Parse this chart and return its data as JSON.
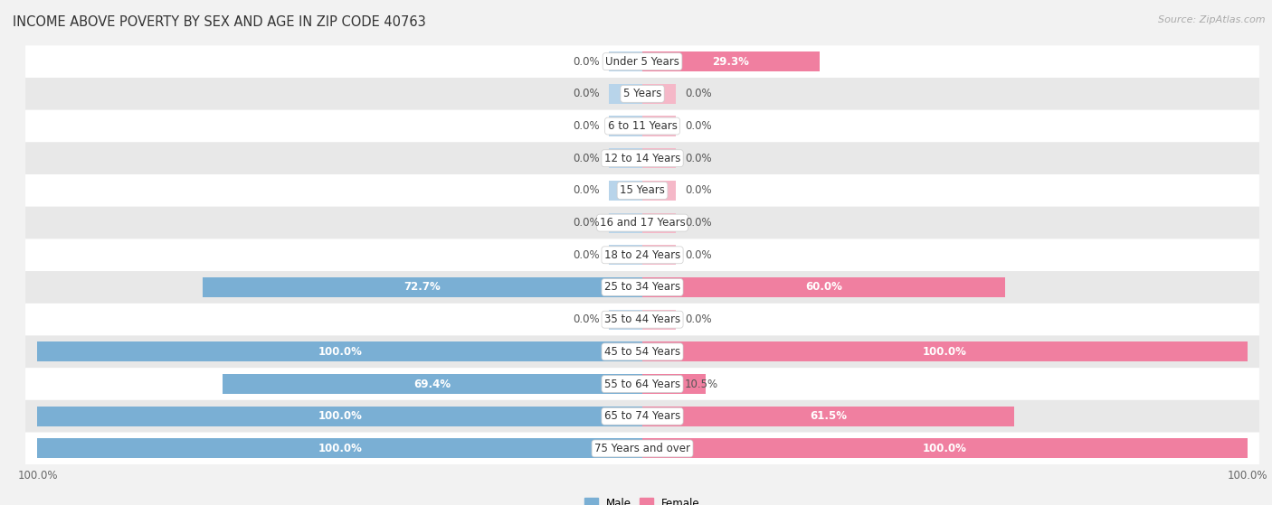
{
  "title": "INCOME ABOVE POVERTY BY SEX AND AGE IN ZIP CODE 40763",
  "source": "Source: ZipAtlas.com",
  "categories": [
    "Under 5 Years",
    "5 Years",
    "6 to 11 Years",
    "12 to 14 Years",
    "15 Years",
    "16 and 17 Years",
    "18 to 24 Years",
    "25 to 34 Years",
    "35 to 44 Years",
    "45 to 54 Years",
    "55 to 64 Years",
    "65 to 74 Years",
    "75 Years and over"
  ],
  "male": [
    0.0,
    0.0,
    0.0,
    0.0,
    0.0,
    0.0,
    0.0,
    72.7,
    0.0,
    100.0,
    69.4,
    100.0,
    100.0
  ],
  "female": [
    29.3,
    0.0,
    0.0,
    0.0,
    0.0,
    0.0,
    0.0,
    60.0,
    0.0,
    100.0,
    10.5,
    61.5,
    100.0
  ],
  "male_color": "#7aafd4",
  "female_color": "#f07fa0",
  "male_stub_color": "#b8d4ea",
  "female_stub_color": "#f5b8c8",
  "bg_color": "#f2f2f2",
  "row_color_odd": "#ffffff",
  "row_color_even": "#e8e8e8",
  "title_fontsize": 10.5,
  "source_fontsize": 8,
  "label_fontsize": 8.5,
  "cat_fontsize": 8.5,
  "tick_fontsize": 8.5,
  "bar_height": 0.62,
  "stub_size": 5.5,
  "max_val": 100.0
}
